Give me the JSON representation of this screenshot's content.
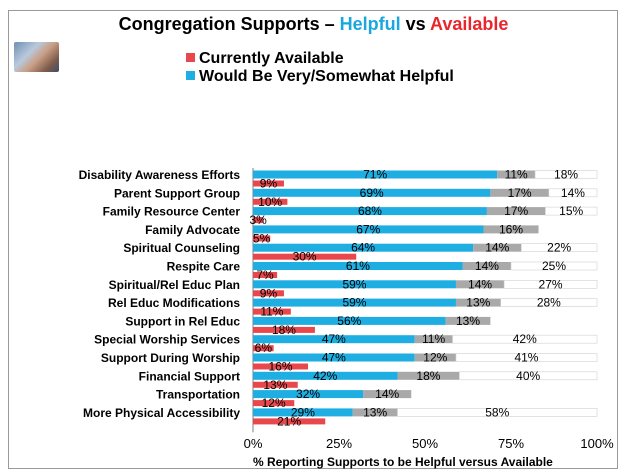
{
  "title": {
    "prefix": "Congregation Supports – ",
    "helpful": "Helpful",
    "vs": " vs ",
    "available": "Available"
  },
  "legend": [
    {
      "label": "Currently Available",
      "color": "#e8484c"
    },
    {
      "label": "Would Be Very/Somewhat Helpful",
      "color": "#1eaee2"
    }
  ],
  "colors": {
    "helpful_title": "#1aa7e0",
    "available_title": "#e8262d",
    "somewhat": "#a9a9a9",
    "not": "#ffffff"
  },
  "chart_data": {
    "type": "bar",
    "xlabel": "% Reporting Supports to be Helpful versus Available",
    "xlim": [
      0,
      100
    ],
    "xticks": [
      "0%",
      "25%",
      "50%",
      "75%",
      "100%"
    ],
    "categories": [
      "Disability Awareness Efforts",
      "Parent Support Group",
      "Family Resource Center",
      "Family Advocate",
      "Spiritual Counseling",
      "Respite Care",
      "Spiritual/Rel Educ Plan",
      "Rel Educ Modifications",
      "Support in Rel Educ",
      "Special Worship Services",
      "Support During Worship",
      "Financial Support",
      "Transportation",
      "More Physical Accessibility"
    ],
    "series": [
      {
        "name": "Currently Available",
        "values": [
          9,
          10,
          3,
          5,
          30,
          7,
          9,
          11,
          18,
          6,
          16,
          13,
          12,
          21
        ]
      },
      {
        "name": "Would Be Very/Somewhat Helpful",
        "values": [
          71,
          69,
          68,
          67,
          64,
          61,
          59,
          59,
          56,
          47,
          47,
          42,
          32,
          29
        ]
      },
      {
        "values": [
          11,
          17,
          17,
          16,
          14,
          14,
          14,
          13,
          13,
          11,
          12,
          18,
          14,
          13
        ]
      },
      {
        "values": [
          18,
          14,
          15,
          null,
          22,
          25,
          27,
          28,
          null,
          42,
          41,
          40,
          null,
          58
        ]
      }
    ]
  }
}
